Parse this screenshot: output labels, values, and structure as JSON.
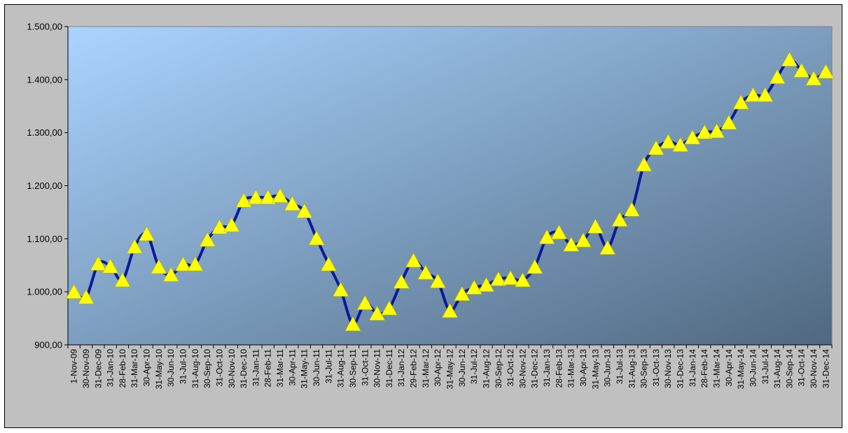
{
  "chart_data": {
    "type": "line",
    "title": "",
    "xlabel": "",
    "ylabel": "",
    "grid": false,
    "legend": "none",
    "ylim": [
      900,
      1500
    ],
    "yticks": [
      "900,00",
      "1.000,00",
      "1.100,00",
      "1.200,00",
      "1.300,00",
      "1.400,00",
      "1.500,00"
    ],
    "ytick_values": [
      900,
      1000,
      1100,
      1200,
      1300,
      1400,
      1500
    ],
    "categories": [
      "1-Nov-09",
      "30-Nov-09",
      "31-Dec-09",
      "31-Jan-10",
      "28-Feb-10",
      "31-Mar-10",
      "30-Apr-10",
      "31-May-10",
      "30-Jun-10",
      "31-Jul-10",
      "31-Aug-10",
      "30-Sep-10",
      "31-Oct-10",
      "30-Nov-10",
      "31-Dec-10",
      "31-Jan-11",
      "28-Feb-11",
      "31-Mar-11",
      "30-Apr-11",
      "31-May-11",
      "30-Jun-11",
      "31-Jul-11",
      "31-Aug-11",
      "30-Sep-11",
      "31-Oct-11",
      "30-Nov-11",
      "31-Dec-11",
      "31-Jan-12",
      "29-Feb-12",
      "31-Mar-12",
      "30-Apr-12",
      "31-May-12",
      "30-Jun-12",
      "31-Jul-12",
      "31-Aug-12",
      "30-Sep-12",
      "31-Oct-12",
      "30-Nov-12",
      "31-Dec-12",
      "31-Jan-13",
      "28-Feb-13",
      "31-Mar-13",
      "30-Apr-13",
      "31-May-13",
      "30-Jun-13",
      "31-Jul-13",
      "31-Aug-13",
      "30-Sep-13",
      "31-Oct-13",
      "30-Nov-13",
      "31-Dec-13",
      "31-Jan-14",
      "28-Feb-14",
      "31-Mar-14",
      "30-Apr-14",
      "31-May-14",
      "30-Jun-14",
      "31-Jul-14",
      "31-Aug-14",
      "30-Sep-14",
      "31-Oct-14",
      "30-Nov-14",
      "31-Dec-14"
    ],
    "series": [
      {
        "values": [
          1000,
          990,
          1053,
          1048,
          1022,
          1085,
          1109,
          1047,
          1032,
          1052,
          1052,
          1098,
          1122,
          1126,
          1172,
          1178,
          1178,
          1181,
          1166,
          1152,
          1101,
          1052,
          1004,
          939,
          979,
          959,
          969,
          1019,
          1059,
          1036,
          1020,
          964,
          996,
          1008,
          1013,
          1024,
          1026,
          1022,
          1047,
          1103,
          1112,
          1089,
          1097,
          1123,
          1083,
          1136,
          1155,
          1240,
          1271,
          1283,
          1277,
          1291,
          1301,
          1303,
          1319,
          1357,
          1371,
          1371,
          1405,
          1438,
          1417,
          1402,
          1415
        ]
      }
    ],
    "colors": {
      "line": "#0a1a9a",
      "marker": "#ffff00",
      "plot_gradient_start": "#aad4ff",
      "plot_gradient_end": "#506880",
      "frame_background": "#c0c0c0"
    },
    "marker": "triangle"
  }
}
